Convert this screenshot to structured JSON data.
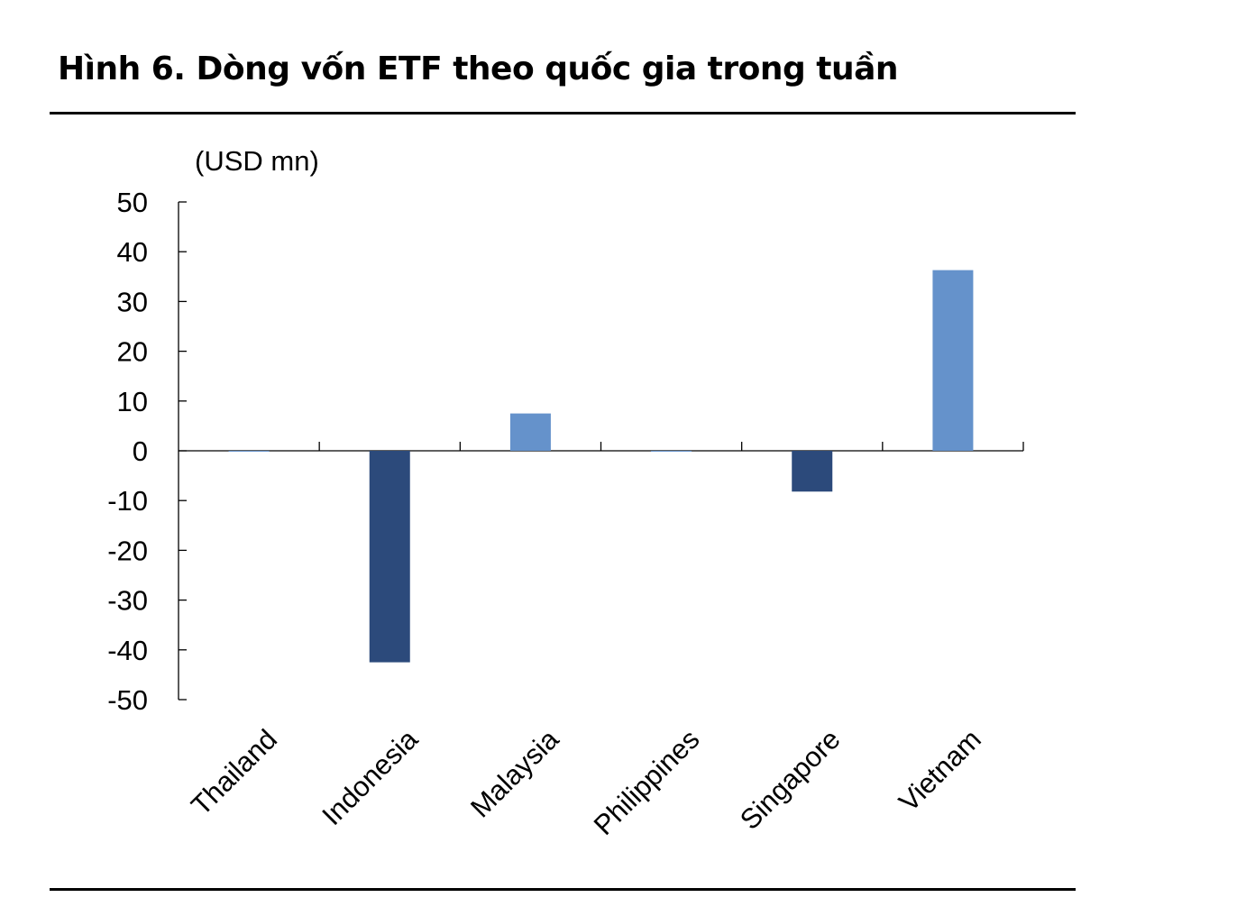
{
  "title": "Hình 6. Dòng vốn ETF theo quốc gia trong tuần",
  "chart_data": {
    "type": "bar",
    "unit_label": "(USD mn)",
    "categories": [
      "Thailand",
      "Indonesia",
      "Malaysia",
      "Philippines",
      "Singapore",
      "Vietnam"
    ],
    "values": [
      0,
      -42.5,
      7.5,
      0,
      -8.2,
      36.3
    ],
    "ylim": [
      -50,
      50
    ],
    "yticks": [
      "50",
      "40",
      "30",
      "20",
      "10",
      "0",
      "-10",
      "-20",
      "-30",
      "-40",
      "-50"
    ],
    "grid": false,
    "legend": "none",
    "colors": {
      "positive": "#6592cb",
      "negative": "#2c4a7b"
    }
  }
}
